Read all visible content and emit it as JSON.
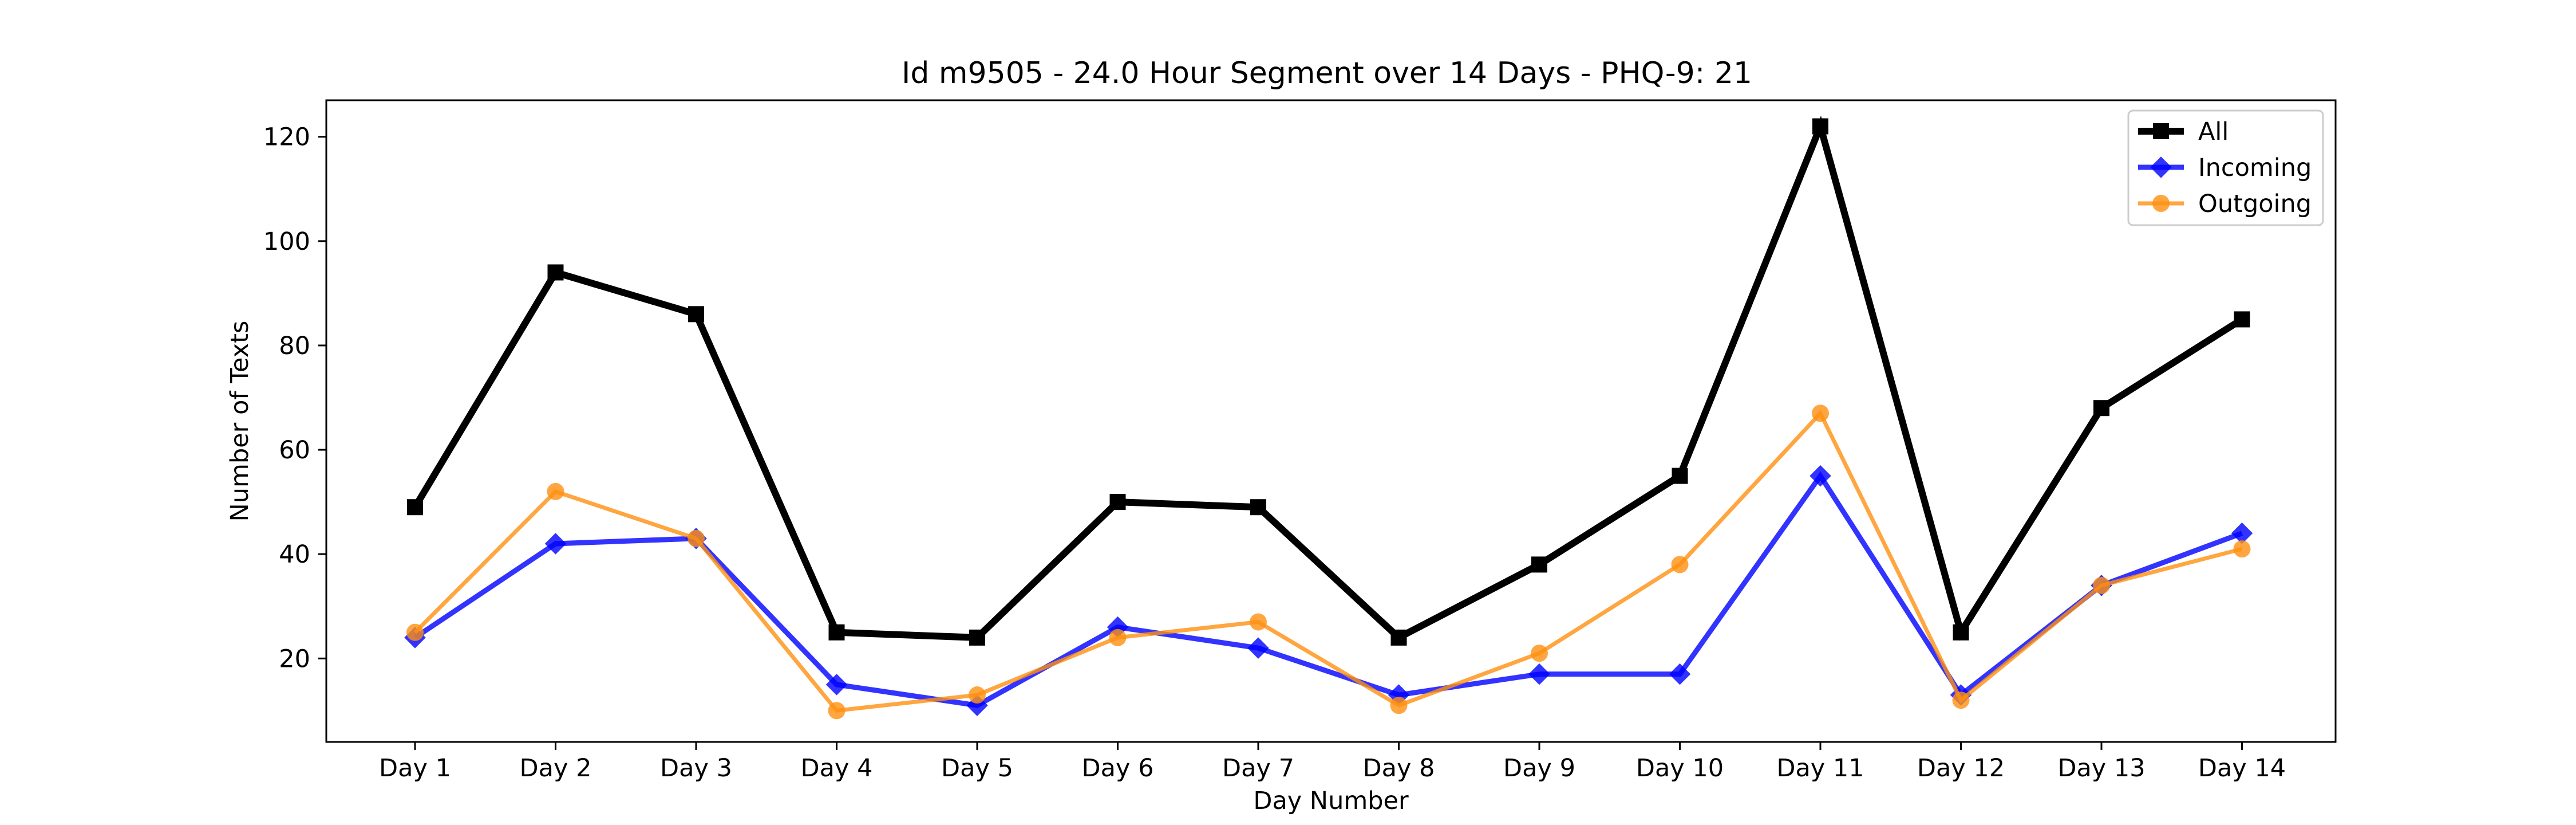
{
  "chart_data": {
    "type": "line",
    "title": "Id m9505 - 24.0 Hour Segment over 14 Days - PHQ-9: 21",
    "xlabel": "Day Number",
    "ylabel": "Number of Texts",
    "categories": [
      "Day 1",
      "Day 2",
      "Day 3",
      "Day 4",
      "Day 5",
      "Day 6",
      "Day 7",
      "Day 8",
      "Day 9",
      "Day 10",
      "Day 11",
      "Day 12",
      "Day 13",
      "Day 14"
    ],
    "yticks": [
      20,
      40,
      60,
      80,
      100,
      120
    ],
    "ylim": [
      4,
      127
    ],
    "grid": false,
    "legend_position": "top-right",
    "series": [
      {
        "name": "All",
        "color": "#000000",
        "marker": "square",
        "values": [
          49,
          94,
          86,
          25,
          24,
          50,
          49,
          24,
          38,
          55,
          122,
          25,
          68,
          85
        ]
      },
      {
        "name": "Incoming",
        "color": "#0000ff",
        "marker": "diamond",
        "values": [
          24,
          42,
          43,
          15,
          11,
          26,
          22,
          13,
          17,
          17,
          55,
          13,
          34,
          44
        ]
      },
      {
        "name": "Outgoing",
        "color": "#ff9010",
        "marker": "circle",
        "values": [
          25,
          52,
          43,
          10,
          13,
          24,
          27,
          11,
          21,
          38,
          67,
          12,
          34,
          41
        ]
      }
    ]
  }
}
